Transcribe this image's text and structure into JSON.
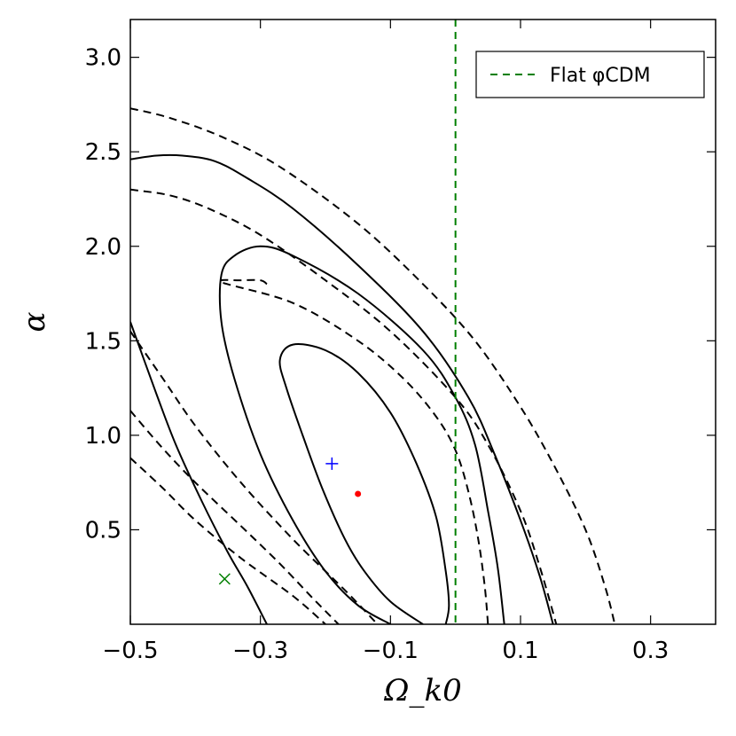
{
  "chart_data": {
    "type": "contour",
    "title": "",
    "xlabel": "Ω_k0",
    "ylabel": "α",
    "xlim": [
      -0.5,
      0.4
    ],
    "ylim": [
      0.0,
      3.2
    ],
    "x_ticks": [
      -0.5,
      -0.3,
      -0.1,
      0.1,
      0.3
    ],
    "x_tick_labels": [
      "−0.5",
      "−0.3",
      "−0.1",
      "0.1",
      "0.3"
    ],
    "y_ticks": [
      0.5,
      1.0,
      1.5,
      2.0,
      2.5,
      3.0
    ],
    "y_tick_labels": [
      "0.5",
      "1.0",
      "1.5",
      "2.0",
      "2.5",
      "3.0"
    ],
    "grid": false,
    "legend": {
      "position": "top-right",
      "entries": [
        {
          "label": "Flat φCDM",
          "style": "dashed",
          "color": "#007f00"
        }
      ]
    },
    "reference_lines": [
      {
        "name": "Flat φCDM",
        "orientation": "vertical",
        "x": 0.0,
        "style": "dashed",
        "color": "#007f00"
      }
    ],
    "markers": [
      {
        "name": "best-fit",
        "symbol": "dot",
        "color": "#ff0000",
        "x": -0.15,
        "y": 0.69
      },
      {
        "name": "plus",
        "symbol": "+",
        "color": "#0000ff",
        "x": -0.19,
        "y": 0.85
      },
      {
        "name": "cross",
        "symbol": "x",
        "color": "#007f00",
        "x": -0.355,
        "y": 0.24
      }
    ],
    "contour_sets": [
      {
        "name": "solid",
        "style": "solid",
        "color": "#000000",
        "contours": [
          {
            "level": "1-sigma",
            "points": [
              [
                -0.05,
                0.0
              ],
              [
                -0.1,
                0.12
              ],
              [
                -0.14,
                0.28
              ],
              [
                -0.17,
                0.45
              ],
              [
                -0.205,
                0.72
              ],
              [
                -0.235,
                1.0
              ],
              [
                -0.26,
                1.25
              ],
              [
                -0.27,
                1.4
              ],
              [
                -0.25,
                1.48
              ],
              [
                -0.2,
                1.45
              ],
              [
                -0.15,
                1.33
              ],
              [
                -0.1,
                1.12
              ],
              [
                -0.06,
                0.85
              ],
              [
                -0.03,
                0.57
              ],
              [
                -0.015,
                0.28
              ],
              [
                -0.01,
                0.1
              ],
              [
                -0.015,
                0.0
              ]
            ]
          },
          {
            "level": "2-sigma",
            "points": [
              [
                -0.1,
                0.0
              ],
              [
                -0.15,
                0.1
              ],
              [
                -0.2,
                0.28
              ],
              [
                -0.25,
                0.55
              ],
              [
                -0.3,
                0.9
              ],
              [
                -0.34,
                1.3
              ],
              [
                -0.36,
                1.6
              ],
              [
                -0.36,
                1.85
              ],
              [
                -0.34,
                1.95
              ],
              [
                -0.3,
                2.0
              ],
              [
                -0.25,
                1.95
              ],
              [
                -0.15,
                1.75
              ],
              [
                -0.05,
                1.45
              ],
              [
                0.0,
                1.2
              ],
              [
                0.03,
                0.95
              ],
              [
                0.05,
                0.6
              ],
              [
                0.065,
                0.3
              ],
              [
                0.075,
                0.0
              ]
            ]
          },
          {
            "level": "3-sigma",
            "points": [
              [
                -0.5,
                1.6
              ],
              [
                -0.46,
                1.22
              ],
              [
                -0.43,
                0.95
              ],
              [
                -0.39,
                0.65
              ],
              [
                -0.35,
                0.38
              ],
              [
                -0.32,
                0.2
              ],
              [
                -0.29,
                0.0
              ]
            ]
          },
          {
            "level": "3-sigma-upper",
            "points": [
              [
                -0.5,
                2.46
              ],
              [
                -0.46,
                2.48
              ],
              [
                -0.42,
                2.48
              ],
              [
                -0.37,
                2.45
              ],
              [
                -0.32,
                2.36
              ],
              [
                -0.25,
                2.2
              ],
              [
                -0.15,
                1.9
              ],
              [
                -0.05,
                1.55
              ],
              [
                0.02,
                1.2
              ],
              [
                0.06,
                0.9
              ],
              [
                0.1,
                0.55
              ],
              [
                0.13,
                0.25
              ],
              [
                0.15,
                0.0
              ]
            ]
          }
        ]
      },
      {
        "name": "dashed",
        "style": "dashed",
        "color": "#000000",
        "contours": [
          {
            "level": "1-sigma",
            "points": [
              [
                -0.29,
                1.8
              ],
              [
                -0.3,
                1.82
              ],
              [
                -0.33,
                1.82
              ],
              [
                -0.36,
                1.81
              ],
              [
                -0.25,
                1.7
              ],
              [
                -0.15,
                1.5
              ],
              [
                -0.08,
                1.3
              ],
              [
                -0.03,
                1.1
              ],
              [
                0.0,
                0.92
              ],
              [
                0.02,
                0.7
              ],
              [
                0.035,
                0.45
              ],
              [
                0.045,
                0.2
              ],
              [
                0.05,
                0.0
              ]
            ]
          },
          {
            "level": "1-sigma-lower",
            "points": [
              [
                -0.5,
                0.88
              ],
              [
                -0.45,
                0.72
              ],
              [
                -0.4,
                0.55
              ],
              [
                -0.33,
                0.35
              ],
              [
                -0.25,
                0.15
              ],
              [
                -0.2,
                0.0
              ]
            ]
          },
          {
            "level": "2-sigma",
            "points": [
              [
                -0.5,
                2.3
              ],
              [
                -0.44,
                2.27
              ],
              [
                -0.38,
                2.2
              ],
              [
                -0.3,
                2.06
              ],
              [
                -0.2,
                1.82
              ],
              [
                -0.1,
                1.55
              ],
              [
                0.0,
                1.2
              ],
              [
                0.05,
                0.95
              ],
              [
                0.1,
                0.6
              ],
              [
                0.13,
                0.3
              ],
              [
                0.155,
                0.0
              ]
            ]
          },
          {
            "level": "2-sigma-lower",
            "points": [
              [
                -0.5,
                1.13
              ],
              [
                -0.45,
                0.93
              ],
              [
                -0.4,
                0.75
              ],
              [
                -0.33,
                0.52
              ],
              [
                -0.27,
                0.32
              ],
              [
                -0.22,
                0.14
              ],
              [
                -0.18,
                0.0
              ]
            ]
          },
          {
            "level": "3-sigma",
            "points": [
              [
                -0.5,
                2.73
              ],
              [
                -0.44,
                2.68
              ],
              [
                -0.36,
                2.58
              ],
              [
                -0.27,
                2.42
              ],
              [
                -0.15,
                2.12
              ],
              [
                -0.05,
                1.8
              ],
              [
                0.03,
                1.5
              ],
              [
                0.1,
                1.15
              ],
              [
                0.15,
                0.85
              ],
              [
                0.2,
                0.5
              ],
              [
                0.23,
                0.2
              ],
              [
                0.245,
                0.0
              ]
            ]
          },
          {
            "level": "3-sigma-lower",
            "points": [
              [
                -0.5,
                1.55
              ],
              [
                -0.45,
                1.3
              ],
              [
                -0.4,
                1.05
              ],
              [
                -0.33,
                0.75
              ],
              [
                -0.25,
                0.45
              ],
              [
                -0.17,
                0.18
              ],
              [
                -0.12,
                0.0
              ]
            ]
          }
        ]
      }
    ]
  }
}
